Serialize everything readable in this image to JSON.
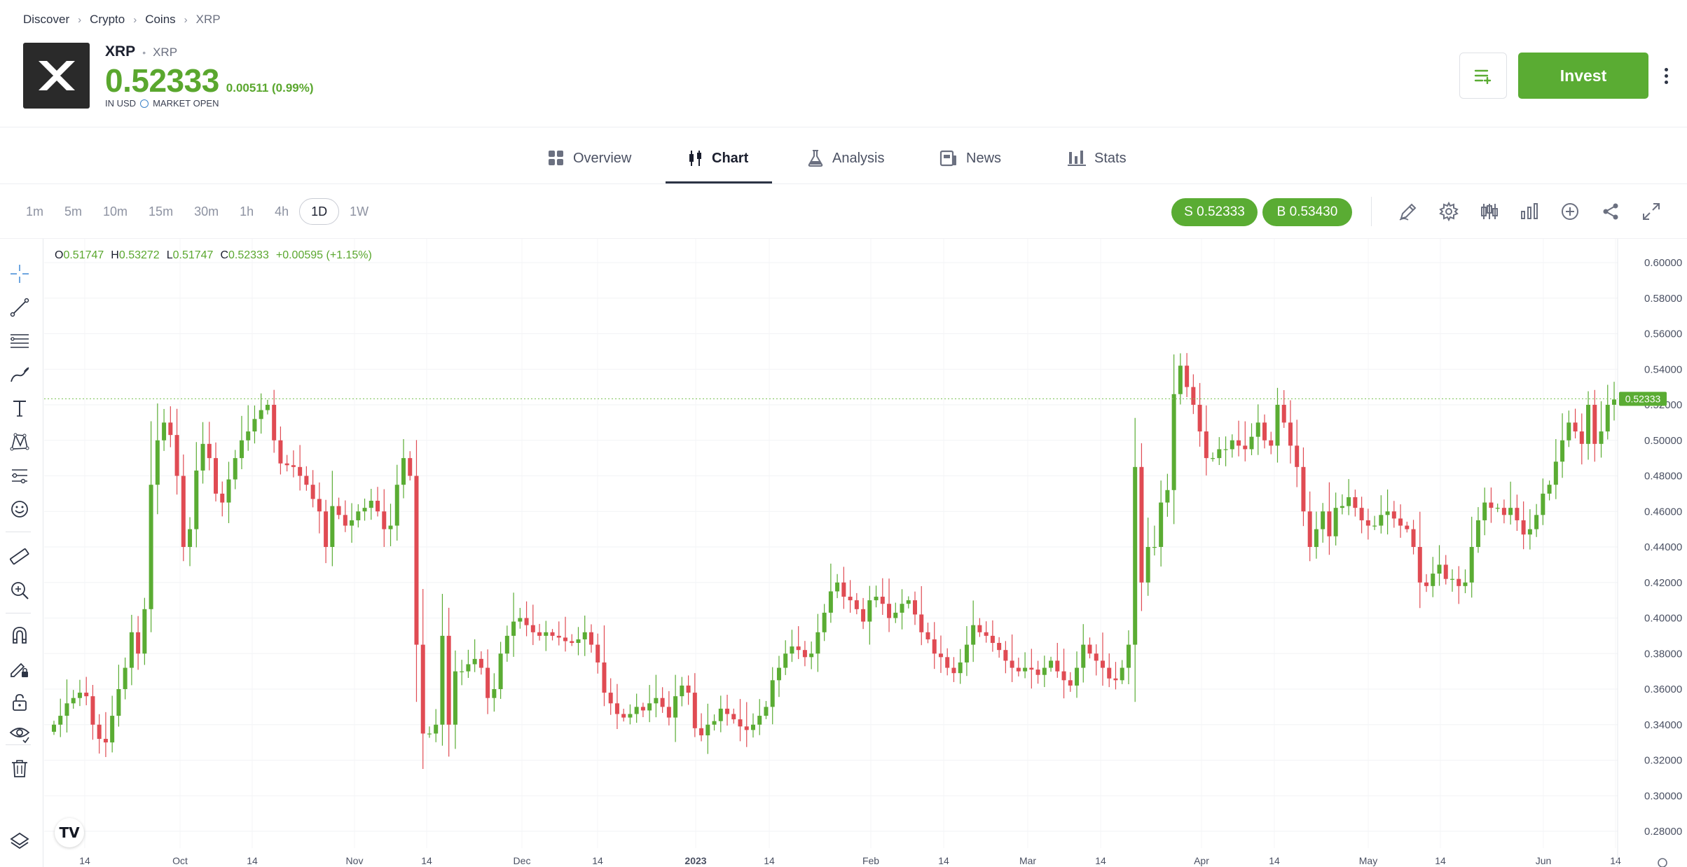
{
  "breadcrumb": [
    "Discover",
    "Crypto",
    "Coins",
    "XRP"
  ],
  "asset": {
    "symbol": "XRP",
    "name": "XRP",
    "price": "0.52333",
    "change": "0.00511 (0.99%)",
    "currency_note": "IN USD",
    "market_status": "MARKET OPEN"
  },
  "actions": {
    "invest_label": "Invest"
  },
  "tabs": [
    {
      "label": "Overview",
      "icon": "grid-icon"
    },
    {
      "label": "Chart",
      "icon": "candles-icon"
    },
    {
      "label": "Analysis",
      "icon": "flask-icon"
    },
    {
      "label": "News",
      "icon": "newspaper-icon"
    },
    {
      "label": "Stats",
      "icon": "bars-icon"
    }
  ],
  "active_tab": "Chart",
  "timeframes": [
    "1m",
    "5m",
    "10m",
    "15m",
    "30m",
    "1h",
    "4h",
    "1D",
    "1W"
  ],
  "active_timeframe": "1D",
  "sell_label": "S 0.52333",
  "buy_label": "B 0.53430",
  "ohlc": {
    "o_label": "O",
    "o": "0.51747",
    "h_label": "H",
    "h": "0.53272",
    "l_label": "L",
    "l": "0.51747",
    "c_label": "C",
    "c": "0.52333",
    "change": "+0.00595 (+1.15%)"
  },
  "tv_logo": "TV",
  "colors": {
    "up": "#5aac33",
    "down": "#e04b53",
    "accent": "#5aac33"
  },
  "chart_data": {
    "type": "candlestick",
    "y_ticks": [
      "0.60000",
      "0.58000",
      "0.56000",
      "0.54000",
      "0.52000",
      "0.50000",
      "0.48000",
      "0.46000",
      "0.44000",
      "0.42000",
      "0.40000",
      "0.38000",
      "0.36000",
      "0.34000",
      "0.32000",
      "0.30000",
      "0.28000"
    ],
    "ylim": [
      0.27,
      0.61
    ],
    "x_ticks": [
      "14",
      "Oct",
      "14",
      "Nov",
      "14",
      "Dec",
      "14",
      "2023",
      "14",
      "Feb",
      "14",
      "Mar",
      "14",
      "Apr",
      "14",
      "May",
      "14",
      "Jun",
      "14"
    ],
    "current_price": 0.52333,
    "current_price_label": "0.52333",
    "close": [
      0.34,
      0.345,
      0.352,
      0.355,
      0.358,
      0.356,
      0.34,
      0.332,
      0.33,
      0.345,
      0.36,
      0.372,
      0.392,
      0.38,
      0.405,
      0.475,
      0.5,
      0.51,
      0.503,
      0.48,
      0.44,
      0.45,
      0.483,
      0.498,
      0.49,
      0.47,
      0.465,
      0.478,
      0.49,
      0.5,
      0.505,
      0.512,
      0.517,
      0.52,
      0.5,
      0.487,
      0.486,
      0.485,
      0.48,
      0.475,
      0.467,
      0.46,
      0.44,
      0.463,
      0.458,
      0.452,
      0.455,
      0.46,
      0.462,
      0.466,
      0.46,
      0.45,
      0.452,
      0.475,
      0.49,
      0.48,
      0.385,
      0.335,
      0.335,
      0.34,
      0.39,
      0.34,
      0.37,
      0.37,
      0.374,
      0.377,
      0.372,
      0.355,
      0.36,
      0.38,
      0.39,
      0.398,
      0.4,
      0.396,
      0.392,
      0.39,
      0.392,
      0.39,
      0.389,
      0.387,
      0.386,
      0.388,
      0.392,
      0.385,
      0.375,
      0.358,
      0.352,
      0.346,
      0.344,
      0.346,
      0.35,
      0.348,
      0.352,
      0.355,
      0.35,
      0.344,
      0.356,
      0.362,
      0.358,
      0.338,
      0.334,
      0.34,
      0.342,
      0.349,
      0.346,
      0.343,
      0.339,
      0.337,
      0.34,
      0.345,
      0.35,
      0.365,
      0.372,
      0.38,
      0.384,
      0.382,
      0.378,
      0.38,
      0.392,
      0.403,
      0.415,
      0.42,
      0.412,
      0.41,
      0.405,
      0.398,
      0.41,
      0.412,
      0.408,
      0.4,
      0.403,
      0.408,
      0.41,
      0.402,
      0.392,
      0.388,
      0.38,
      0.378,
      0.372,
      0.369,
      0.375,
      0.385,
      0.396,
      0.392,
      0.39,
      0.386,
      0.382,
      0.376,
      0.372,
      0.37,
      0.372,
      0.371,
      0.368,
      0.372,
      0.376,
      0.37,
      0.365,
      0.362,
      0.372,
      0.385,
      0.38,
      0.376,
      0.372,
      0.366,
      0.365,
      0.372,
      0.385,
      0.485,
      0.42,
      0.44,
      0.44,
      0.465,
      0.472,
      0.526,
      0.542,
      0.53,
      0.52,
      0.505,
      0.49,
      0.49,
      0.495,
      0.495,
      0.5,
      0.497,
      0.495,
      0.502,
      0.51,
      0.5,
      0.497,
      0.52,
      0.51,
      0.497,
      0.485,
      0.46,
      0.44,
      0.45,
      0.46,
      0.446,
      0.462,
      0.463,
      0.468,
      0.462,
      0.455,
      0.452,
      0.452,
      0.458,
      0.46,
      0.456,
      0.452,
      0.45,
      0.44,
      0.42,
      0.418,
      0.425,
      0.43,
      0.422,
      0.422,
      0.418,
      0.42,
      0.44,
      0.455,
      0.465,
      0.462,
      0.462,
      0.458,
      0.462,
      0.455,
      0.447,
      0.45,
      0.458,
      0.47,
      0.475,
      0.488,
      0.5,
      0.51,
      0.505,
      0.498,
      0.52,
      0.498,
      0.505,
      0.52,
      0.523
    ]
  }
}
